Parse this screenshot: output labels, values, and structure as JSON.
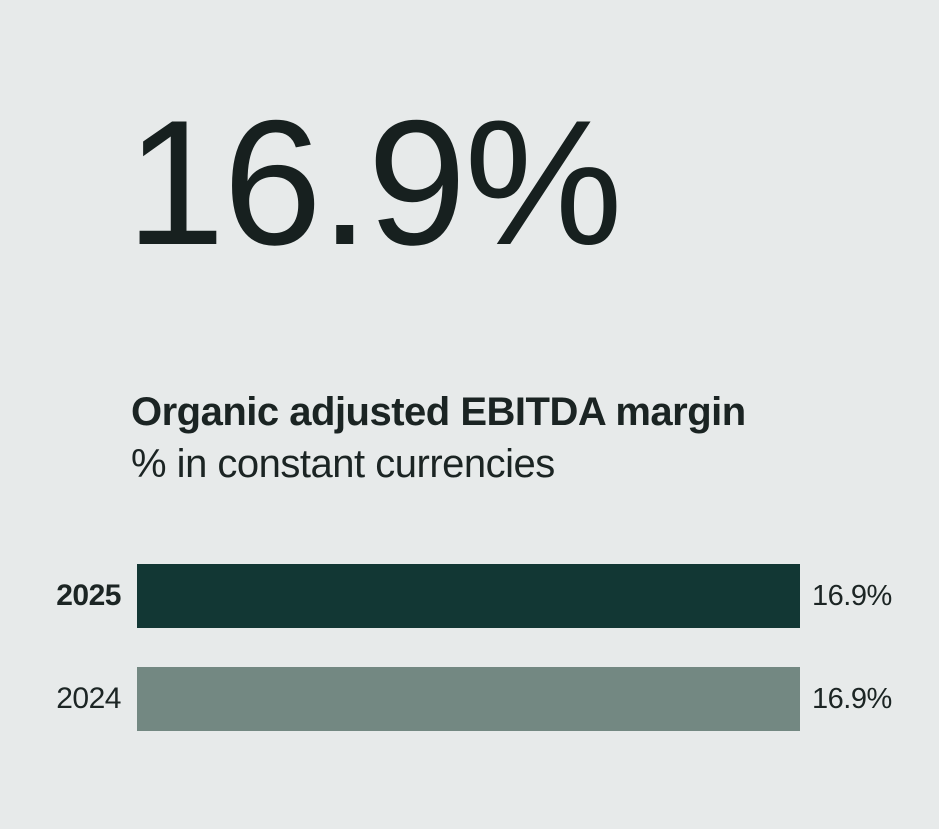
{
  "headline": {
    "value": "16.9%"
  },
  "subtitle": {
    "line1": "Organic adjusted EBITDA margin",
    "line2": "% in constant currencies"
  },
  "chart_data": {
    "type": "bar",
    "orientation": "horizontal",
    "title": "Organic adjusted EBITDA margin",
    "subtitle": "% in constant currencies",
    "unit": "%",
    "categories": [
      "2025",
      "2024"
    ],
    "values": [
      16.9,
      16.9
    ],
    "value_labels": [
      "16.9%",
      "16.9%"
    ],
    "xlim": [
      0,
      16.9
    ],
    "grid": false,
    "legend": "none",
    "bar_colors": [
      "#123734",
      "#738882"
    ],
    "highlight_category": "2025"
  },
  "colors": {
    "background": "#e7eaea",
    "text_primary": "#17201f",
    "text_secondary": "#1c2524",
    "bar_2025": "#123734",
    "bar_2024": "#738882"
  }
}
